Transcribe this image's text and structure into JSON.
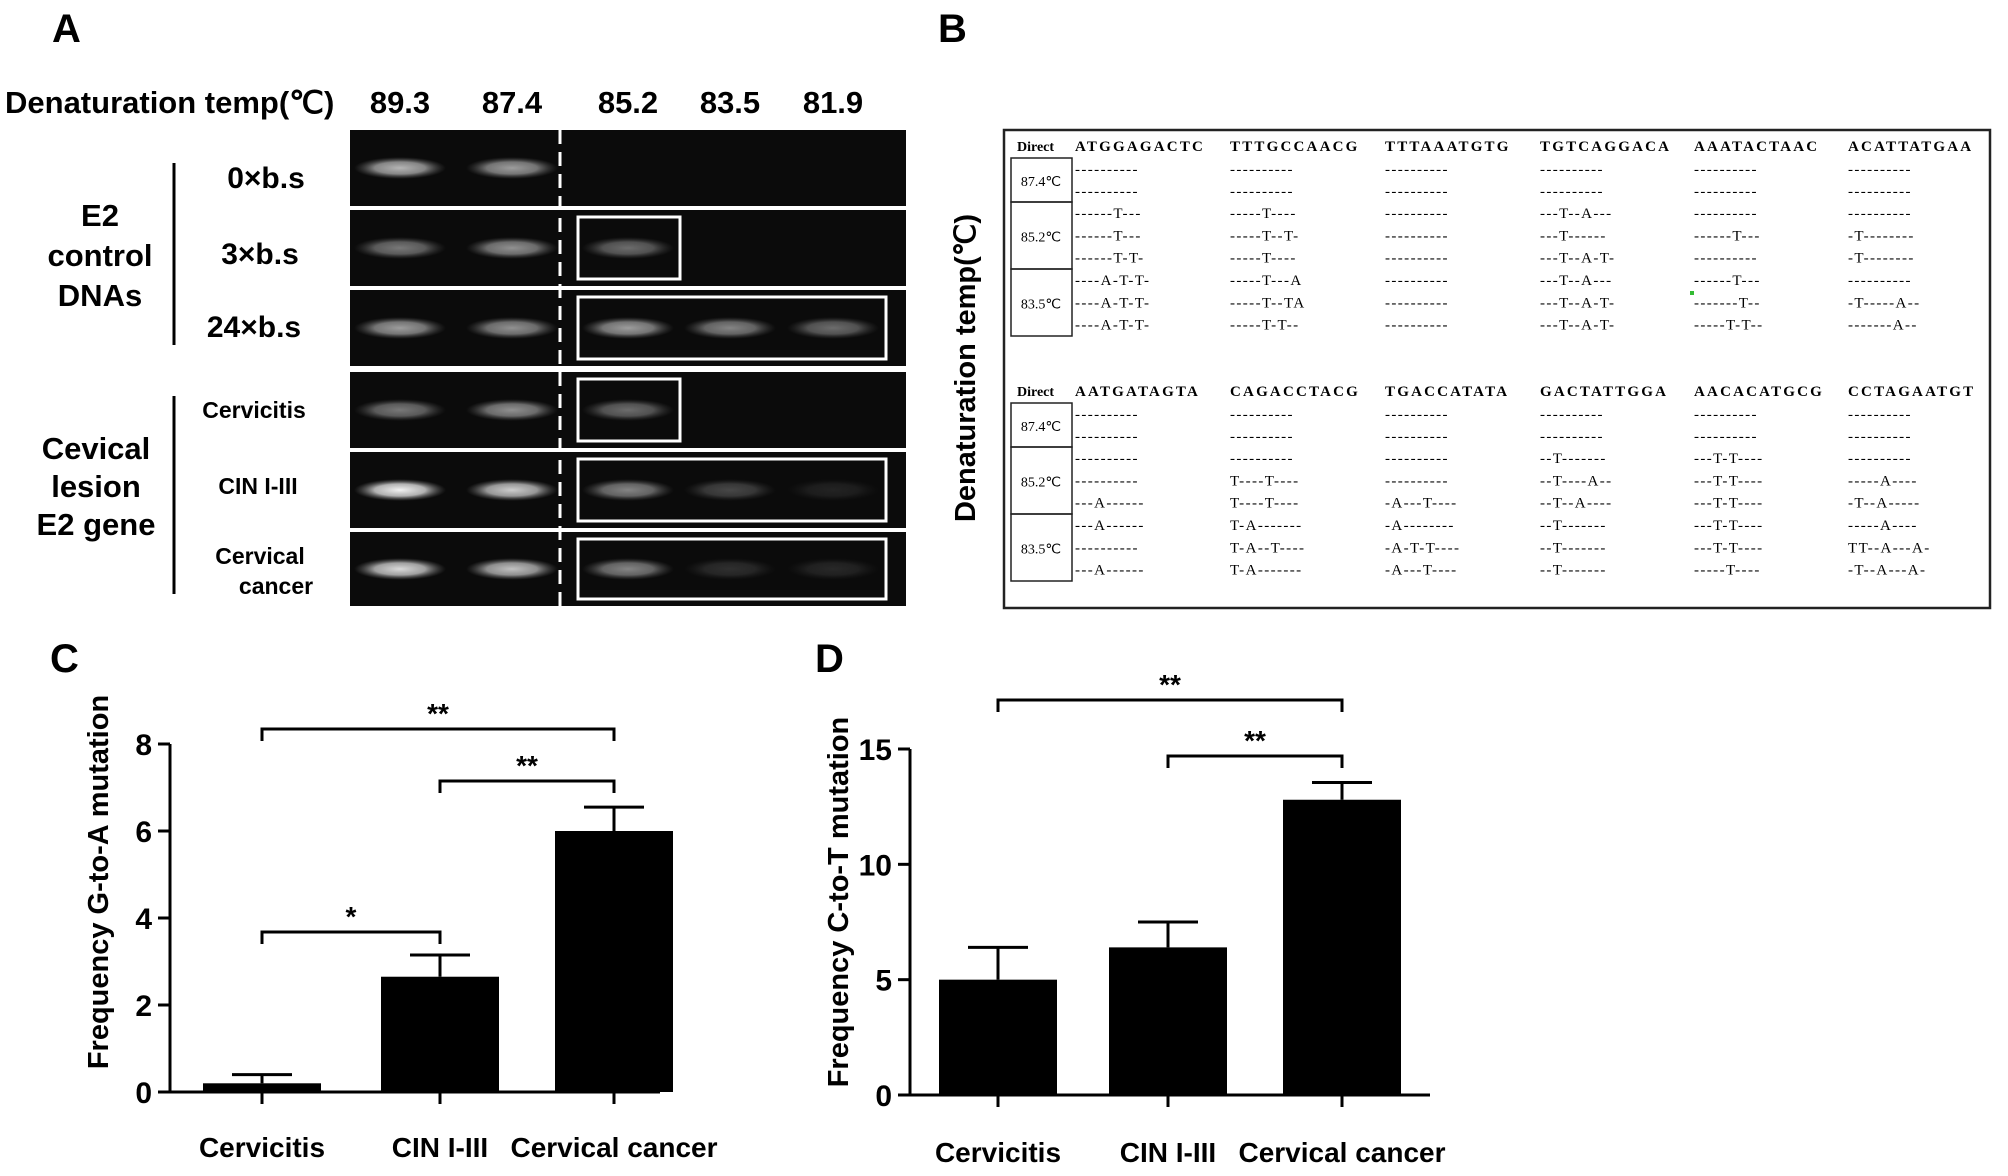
{
  "panels": {
    "a": "A",
    "b": "B",
    "c": "C",
    "d": "D"
  },
  "panel_a": {
    "denaturation_label": "Denaturation temp(℃)",
    "temps": [
      "89.3",
      "87.4",
      "85.2",
      "83.5",
      "81.9"
    ],
    "group1_label": [
      "E2",
      "control",
      "DNAs"
    ],
    "group1_rows": [
      "0×b.s",
      "3×b.s",
      "24×b.s"
    ],
    "group2_label": [
      "Cevical",
      "lesion",
      "E2 gene"
    ],
    "group2_rows": [
      "Cervicitis",
      "CIN I-III",
      [
        "Cervical",
        "cancer"
      ]
    ],
    "band_levels": [
      [
        0.7,
        0.6,
        0,
        0,
        0
      ],
      [
        0.45,
        0.55,
        0.4,
        0,
        0
      ],
      [
        0.6,
        0.55,
        0.6,
        0.5,
        0.4
      ],
      [
        0.45,
        0.55,
        0.4,
        0,
        0
      ],
      [
        0.95,
        0.8,
        0.5,
        0.25,
        0.1
      ],
      [
        0.85,
        0.75,
        0.5,
        0.15,
        0.12
      ]
    ]
  },
  "panel_b": {
    "y_title": "Denaturation temp(℃)",
    "blocks": [
      {
        "direct_label": "Direct",
        "sequence": [
          "ATGGAGACTC",
          "TTTGCCAACG",
          "TTTAAATGTG",
          "TGTCAGGACA",
          "AAATACTAAC",
          "ACATTATGAA"
        ],
        "groups": [
          {
            "temp": "87.4℃",
            "lines": [
              [
                "----------",
                "----------",
                "----------",
                "----------",
                "----------",
                "----------"
              ],
              [
                "----------",
                "----------",
                "----------",
                "----------",
                "----------",
                "----------"
              ]
            ]
          },
          {
            "temp": "85.2℃",
            "lines": [
              [
                "------T---",
                "-----T----",
                "----------",
                "---T--A---",
                "----------",
                "----------"
              ],
              [
                "------T---",
                "-----T--T-",
                "----------",
                "---T------",
                "------T---",
                "-T--------"
              ],
              [
                "------T-T-",
                "-----T----",
                "----------",
                "---T--A-T-",
                "----------",
                "-T--------"
              ]
            ]
          },
          {
            "temp": "83.5℃",
            "lines": [
              [
                "----A-T-T-",
                "-----T---A",
                "----------",
                "---T--A---",
                "------T---",
                "----------"
              ],
              [
                "----A-T-T-",
                "-----T--TA",
                "----------",
                "---T--A-T-",
                "-------T--",
                "-T-----A--"
              ],
              [
                "----A-T-T-",
                "-----T-T--",
                "----------",
                "---T--A-T-",
                "-----T-T--",
                "-------A--"
              ]
            ]
          }
        ]
      },
      {
        "direct_label": "Direct",
        "sequence": [
          "AATGATAGTA",
          "CAGACCTACG",
          "TGACCATATA",
          "GACTATTGGA",
          "AACACATGCG",
          "CCTAGAATGT"
        ],
        "groups": [
          {
            "temp": "87.4℃",
            "lines": [
              [
                "----------",
                "----------",
                "----------",
                "----------",
                "----------",
                "----------"
              ],
              [
                "----------",
                "----------",
                "----------",
                "----------",
                "----------",
                "----------"
              ]
            ]
          },
          {
            "temp": "85.2℃",
            "lines": [
              [
                "----------",
                "----------",
                "----------",
                "--T-------",
                "---T-T----",
                "----------"
              ],
              [
                "----------",
                "T----T----",
                "----------",
                "--T----A--",
                "---T-T----",
                "-----A----"
              ],
              [
                "---A------",
                "T----T----",
                "-A---T----",
                "--T--A----",
                "---T-T----",
                "-T--A-----"
              ]
            ]
          },
          {
            "temp": "83.5℃",
            "lines": [
              [
                "---A------",
                "T-A-------",
                "-A--------",
                "--T-------",
                "---T-T----",
                "-----A----"
              ],
              [
                "----------",
                "T-A--T----",
                "-A-T-T----",
                "--T-------",
                "---T-T----",
                "TT--A---A-"
              ],
              [
                "---A------",
                "T-A-------",
                "-A---T----",
                "--T-------",
                "-----T----",
                "-T--A---A-"
              ]
            ]
          }
        ]
      }
    ]
  },
  "chart_data": [
    {
      "type": "bar",
      "panel": "C",
      "categories": [
        "Cervicitis",
        "CIN I-III",
        "Cervical cancer"
      ],
      "values": [
        0.2,
        2.65,
        6.0
      ],
      "error": [
        0.2,
        0.5,
        0.55
      ],
      "ylabel": "Frequency G-to-A mutation",
      "ylim": [
        0,
        8
      ],
      "yticks": [
        0,
        2,
        4,
        6,
        8
      ],
      "grid": false,
      "significance": [
        {
          "from": 0,
          "to": 1,
          "label": "*"
        },
        {
          "from": 1,
          "to": 2,
          "label": "**"
        },
        {
          "from": 0,
          "to": 2,
          "label": "**"
        }
      ]
    },
    {
      "type": "bar",
      "panel": "D",
      "categories": [
        "Cervicitis",
        "CIN I-III",
        "Cervical cancer"
      ],
      "values": [
        5.0,
        6.4,
        12.8
      ],
      "error": [
        1.4,
        1.1,
        0.75
      ],
      "ylabel": "Frequency C-to-T mutation",
      "ylim": [
        0,
        15
      ],
      "yticks": [
        0,
        5,
        10,
        15
      ],
      "grid": false,
      "significance": [
        {
          "from": 1,
          "to": 2,
          "label": "**"
        },
        {
          "from": 0,
          "to": 2,
          "label": "**"
        }
      ]
    }
  ],
  "colors": {
    "bar": "#000000",
    "gel_bg": "#0b0b0b",
    "band": "#e6e6e6",
    "box": "#ffffff",
    "marker": "#33bb33"
  }
}
